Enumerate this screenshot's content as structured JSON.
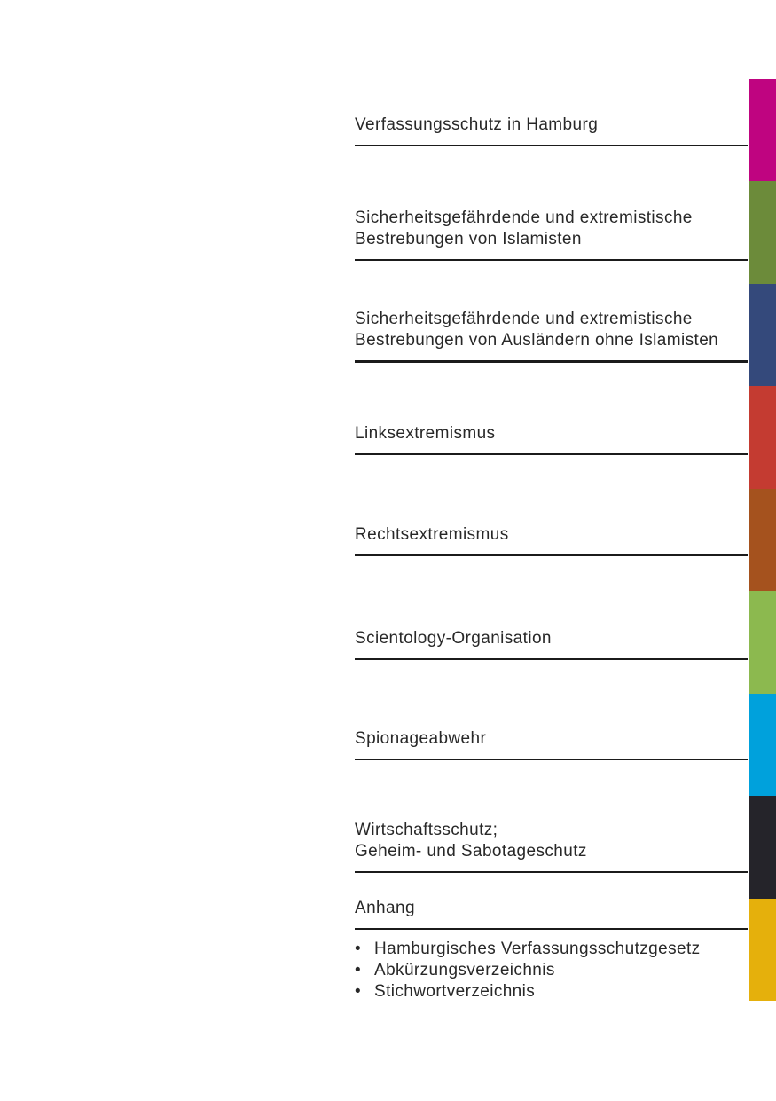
{
  "page": {
    "background": "#ffffff",
    "text_color": "#282828",
    "rule_color": "#1b1b1b"
  },
  "toc": {
    "sections": [
      {
        "id": "verfassungsschutz-hamburg",
        "lines": [
          "Verfassungsschutz in Hamburg"
        ],
        "tab_color": "#bf0480"
      },
      {
        "id": "islamisten",
        "lines": [
          "Sicherheitsgefährdende und extremistische",
          "Bestrebungen von Islamisten"
        ],
        "tab_color": "#6c8b3a"
      },
      {
        "id": "auslaender-ohne-islamisten",
        "lines": [
          "Sicherheitsgefährdende und extremistische",
          "Bestrebungen von Ausländern ohne Islamisten"
        ],
        "tab_color": "#34497b"
      },
      {
        "id": "linksextremismus",
        "lines": [
          "Linksextremismus"
        ],
        "tab_color": "#c43b31"
      },
      {
        "id": "rechtsextremismus",
        "lines": [
          "Rechtsextremismus"
        ],
        "tab_color": "#a5521e"
      },
      {
        "id": "scientology-organisation",
        "lines": [
          "Scientology-Organisation"
        ],
        "tab_color": "#8cb94f"
      },
      {
        "id": "spionageabwehr",
        "lines": [
          "Spionageabwehr"
        ],
        "tab_color": "#00a1dc"
      },
      {
        "id": "wirtschaftsschutz",
        "lines": [
          "Wirtschaftsschutz;",
          "Geheim- und Sabotageschutz"
        ],
        "tab_color": "#25242a"
      },
      {
        "id": "anhang",
        "lines": [
          "Anhang"
        ],
        "tab_color": "#e5b00c"
      }
    ],
    "bullet": "•",
    "anhang_items": [
      "Hamburgisches Verfassungsschutzgesetz",
      "Abkürzungsverzeichnis",
      "Stichwortverzeichnis"
    ]
  }
}
